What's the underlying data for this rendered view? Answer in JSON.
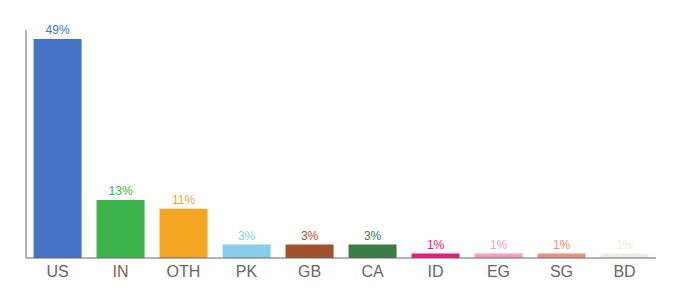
{
  "chart_data": {
    "type": "bar",
    "categories": [
      "US",
      "IN",
      "OTH",
      "PK",
      "GB",
      "CA",
      "ID",
      "EG",
      "SG",
      "BD"
    ],
    "values": [
      49,
      13,
      11,
      3,
      3,
      3,
      1,
      1,
      1,
      1
    ],
    "value_labels": [
      "49%",
      "13%",
      "11%",
      "3%",
      "3%",
      "3%",
      "1%",
      "1%",
      "1%",
      "1%"
    ],
    "colors": [
      "#4472c4",
      "#3cb54a",
      "#f5a623",
      "#87ceeb",
      "#a0522d",
      "#3a7d44",
      "#e8197a",
      "#f4a0b8",
      "#e89080",
      "#f0ede0"
    ],
    "ylim": [
      0,
      51
    ],
    "data_labels": true,
    "tick_labels": "x",
    "grid": false
  }
}
